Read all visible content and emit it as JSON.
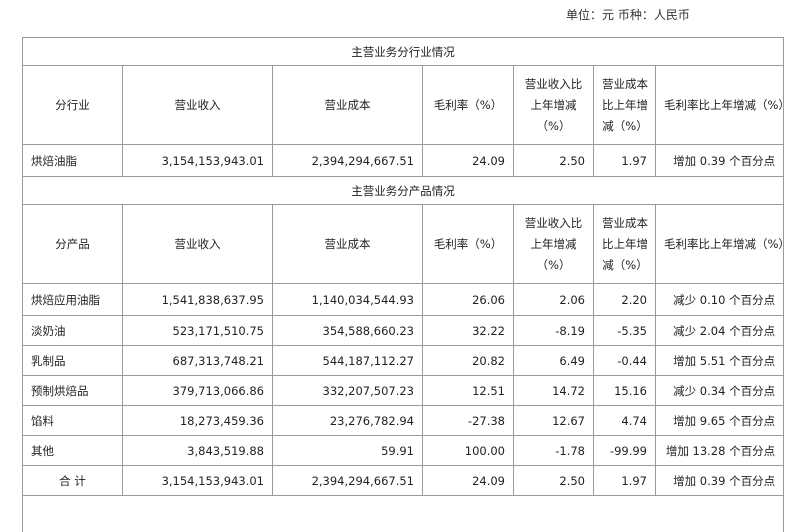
{
  "unit_note": "单位：元  币种：人民币",
  "industry_section": {
    "title": "主营业务分行业情况",
    "headers": {
      "category": "分行业",
      "revenue": "营业收入",
      "cost": "营业成本",
      "margin": "毛利率（%）",
      "revenue_change": [
        "营业收入比",
        "上年增减",
        "（%）"
      ],
      "cost_change": [
        "营业成本",
        "比上年增",
        "减（%）"
      ],
      "margin_change": "毛利率比上年增减（%）"
    },
    "rows": [
      {
        "name": "烘焙油脂",
        "revenue": "3,154,153,943.01",
        "cost": "2,394,294,667.51",
        "margin": "24.09",
        "revenue_change": "2.50",
        "cost_change": "1.97",
        "margin_change": "增加 0.39 个百分点"
      }
    ]
  },
  "product_section": {
    "title": "主营业务分产品情况",
    "headers": {
      "category": "分产品",
      "revenue": "营业收入",
      "cost": "营业成本",
      "margin": "毛利率（%）",
      "revenue_change": [
        "营业收入比",
        "上年增减",
        "（%）"
      ],
      "cost_change": [
        "营业成本",
        "比上年增",
        "减（%）"
      ],
      "margin_change": "毛利率比上年增减（%）"
    },
    "rows": [
      {
        "name": "烘焙应用油脂",
        "revenue": "1,541,838,637.95",
        "cost": "1,140,034,544.93",
        "margin": "26.06",
        "revenue_change": "2.06",
        "cost_change": "2.20",
        "margin_change": "减少 0.10 个百分点"
      },
      {
        "name": "淡奶油",
        "revenue": "523,171,510.75",
        "cost": "354,588,660.23",
        "margin": "32.22",
        "revenue_change": "-8.19",
        "cost_change": "-5.35",
        "margin_change": "减少 2.04 个百分点"
      },
      {
        "name": "乳制品",
        "revenue": "687,313,748.21",
        "cost": "544,187,112.27",
        "margin": "20.82",
        "revenue_change": "6.49",
        "cost_change": "-0.44",
        "margin_change": "增加 5.51 个百分点"
      },
      {
        "name": "预制烘焙品",
        "revenue": "379,713,066.86",
        "cost": "332,207,507.23",
        "margin": "12.51",
        "revenue_change": "14.72",
        "cost_change": "15.16",
        "margin_change": "减少 0.34 个百分点"
      },
      {
        "name": "馅料",
        "revenue": "18,273,459.36",
        "cost": "23,276,782.94",
        "margin": "-27.38",
        "revenue_change": "12.67",
        "cost_change": "4.74",
        "margin_change": "增加 9.65 个百分点"
      },
      {
        "name": "其他",
        "revenue": "3,843,519.88",
        "cost": "59.91",
        "margin": "100.00",
        "revenue_change": "-1.78",
        "cost_change": "-99.99",
        "margin_change": "增加 13.28 个百分点"
      }
    ],
    "total": {
      "name": "合 计",
      "revenue": "3,154,153,943.01",
      "cost": "2,394,294,667.51",
      "margin": "24.09",
      "revenue_change": "2.50",
      "cost_change": "1.97",
      "margin_change": "增加 0.39 个百分点"
    }
  }
}
